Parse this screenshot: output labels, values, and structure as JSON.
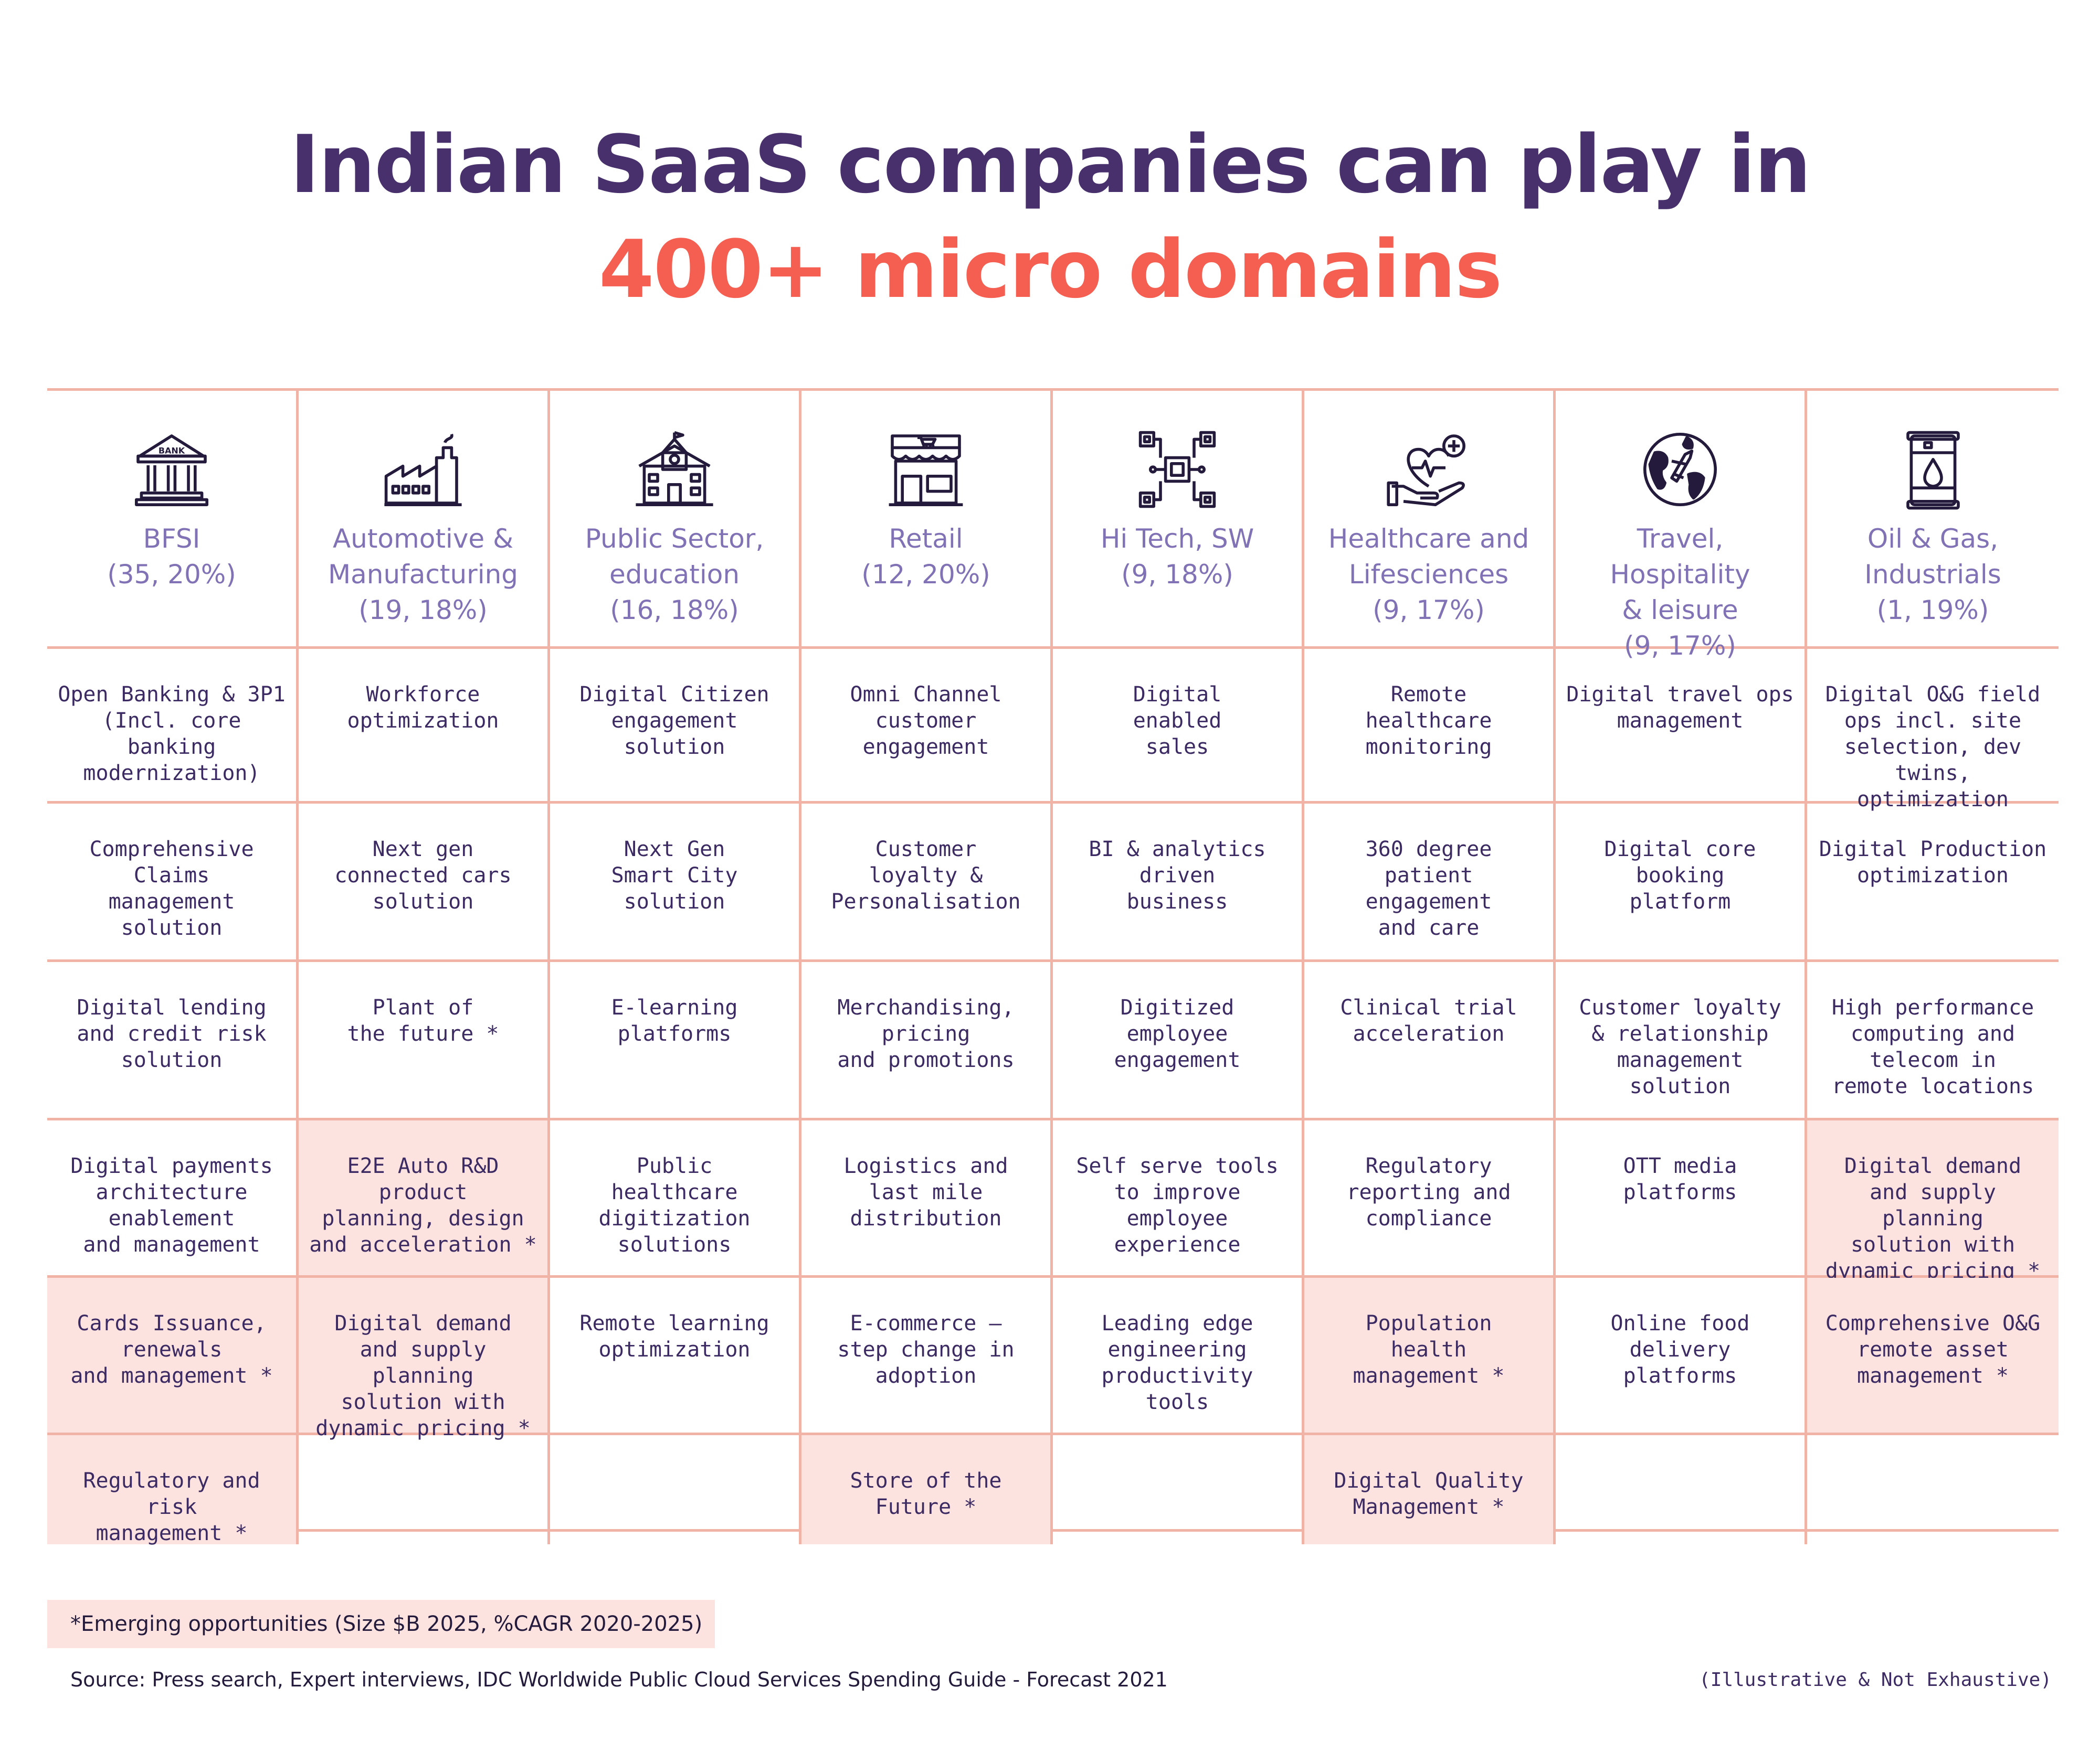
{
  "title": {
    "line1": "Indian SaaS companies can play in",
    "line2": "400+ micro domains"
  },
  "colors": {
    "title_dark": "#47306b",
    "title_accent": "#f45f52",
    "header_text": "#8072b4",
    "cell_text": "#3c2a63",
    "grid_line": "#f2b3a7",
    "emerging_fill": "#fce3df"
  },
  "columns": [
    {
      "icon": "bank-icon",
      "label": "BFSI",
      "stats": "(35, 20%)",
      "cells": [
        {
          "text": "Open Banking & 3P1\n(Incl. core banking\nmodernization)",
          "emerging": false
        },
        {
          "text": "Comprehensive\nClaims\nmanagement\nsolution",
          "emerging": false
        },
        {
          "text": "Digital lending\nand credit risk\nsolution",
          "emerging": false
        },
        {
          "text": "Digital payments\narchitecture\nenablement\nand management",
          "emerging": false
        },
        {
          "text": "Cards Issuance,\nrenewals\nand management *",
          "emerging": true
        },
        {
          "text": "Regulatory and risk\nmanagement *",
          "emerging": true
        }
      ]
    },
    {
      "icon": "factory-icon",
      "label": "Automotive &\nManufacturing",
      "stats": "(19, 18%)",
      "cells": [
        {
          "text": "Workforce\noptimization",
          "emerging": false
        },
        {
          "text": "Next gen\nconnected cars\nsolution",
          "emerging": false
        },
        {
          "text": "Plant of\nthe future *",
          "emerging": false
        },
        {
          "text": "E2E Auto R&D\nproduct\nplanning, design\nand acceleration *",
          "emerging": true
        },
        {
          "text": "Digital demand\nand supply planning\nsolution with\ndynamic pricing *",
          "emerging": true
        },
        {
          "text": "",
          "emerging": false
        }
      ]
    },
    {
      "icon": "school-building-icon",
      "label": "Public Sector,\neducation",
      "stats": "(16, 18%)",
      "cells": [
        {
          "text": "Digital Citizen\nengagement\nsolution",
          "emerging": false
        },
        {
          "text": "Next Gen\nSmart City\nsolution",
          "emerging": false
        },
        {
          "text": "E-learning\nplatforms",
          "emerging": false
        },
        {
          "text": "Public\nhealthcare\ndigitization\nsolutions",
          "emerging": false
        },
        {
          "text": "Remote learning\noptimization",
          "emerging": false
        },
        {
          "text": "",
          "emerging": false
        }
      ]
    },
    {
      "icon": "store-icon",
      "label": "Retail",
      "stats": "(12, 20%)",
      "cells": [
        {
          "text": "Omni Channel\ncustomer\nengagement",
          "emerging": false
        },
        {
          "text": "Customer\nloyalty &\nPersonalisation",
          "emerging": false
        },
        {
          "text": "Merchandising,\npricing\nand promotions",
          "emerging": false
        },
        {
          "text": "Logistics and\nlast mile\ndistribution",
          "emerging": false
        },
        {
          "text": "E-commerce –\nstep change in\nadoption",
          "emerging": false
        },
        {
          "text": "Store of the\nFuture *",
          "emerging": true
        }
      ]
    },
    {
      "icon": "circuit-chip-icon",
      "label": "Hi Tech, SW",
      "stats": "(9, 18%)",
      "cells": [
        {
          "text": "Digital\nenabled\nsales",
          "emerging": false
        },
        {
          "text": "BI & analytics\ndriven\nbusiness",
          "emerging": false
        },
        {
          "text": "Digitized\nemployee\nengagement",
          "emerging": false
        },
        {
          "text": "Self serve tools\nto improve\nemployee\nexperience",
          "emerging": false
        },
        {
          "text": "Leading edge\nengineering\nproductivity\ntools",
          "emerging": false
        },
        {
          "text": "",
          "emerging": false
        }
      ]
    },
    {
      "icon": "healthcare-hand-heart-icon",
      "label": "Healthcare and\nLifesciences",
      "stats": "(9, 17%)",
      "cells": [
        {
          "text": "Remote\nhealthcare\nmonitoring",
          "emerging": false
        },
        {
          "text": "360 degree\npatient\nengagement\nand care",
          "emerging": false
        },
        {
          "text": "Clinical trial\nacceleration",
          "emerging": false
        },
        {
          "text": "Regulatory\nreporting and\ncompliance",
          "emerging": false
        },
        {
          "text": "Population\nhealth\nmanagement *",
          "emerging": true
        },
        {
          "text": "Digital Quality\nManagement *",
          "emerging": true
        }
      ]
    },
    {
      "icon": "globe-plane-icon",
      "label": "Travel, Hospitality\n& leisure",
      "stats": "(9, 17%)",
      "cells": [
        {
          "text": "Digital travel ops\nmanagement",
          "emerging": false
        },
        {
          "text": "Digital core\nbooking\nplatform",
          "emerging": false
        },
        {
          "text": "Customer loyalty\n& relationship\nmanagement\nsolution",
          "emerging": false
        },
        {
          "text": "OTT media\nplatforms",
          "emerging": false
        },
        {
          "text": "Online food\ndelivery\nplatforms",
          "emerging": false
        },
        {
          "text": "",
          "emerging": false
        }
      ]
    },
    {
      "icon": "oil-barrel-icon",
      "label": "Oil & Gas,\nIndustrials",
      "stats": "(1, 19%)",
      "cells": [
        {
          "text": "Digital O&G field\nops incl. site\nselection, dev twins,\noptimization",
          "emerging": false
        },
        {
          "text": "Digital Production\noptimization",
          "emerging": false
        },
        {
          "text": "High performance\ncomputing and\ntelecom in\nremote locations",
          "emerging": false
        },
        {
          "text": "Digital demand\nand supply planning\nsolution with\ndynamic pricing *",
          "emerging": true
        },
        {
          "text": "Comprehensive O&G\nremote asset\nmanagement *",
          "emerging": true
        },
        {
          "text": "",
          "emerging": false
        }
      ]
    }
  ],
  "footer": {
    "note": "*Emerging opportunities (Size $B 2025, %CAGR 2020-2025)",
    "source": "Source: Press search, Expert interviews, IDC Worldwide Public Cloud Services Spending Guide - Forecast 2021",
    "disclaimer": "(Illustrative & Not Exhaustive)"
  }
}
